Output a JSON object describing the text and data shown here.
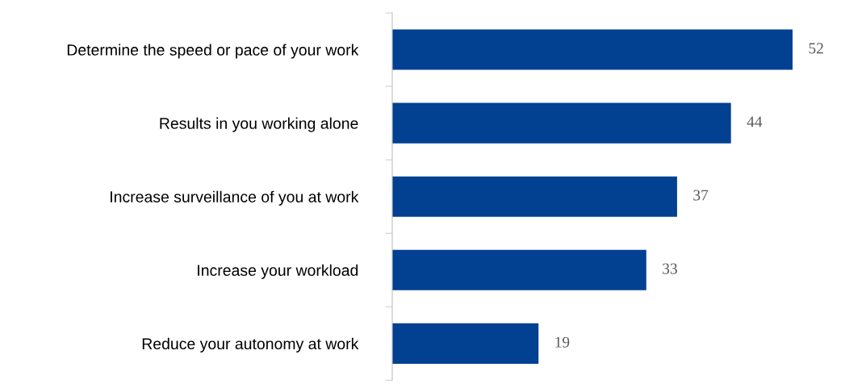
{
  "chart_data": {
    "type": "bar",
    "orientation": "horizontal",
    "categories": [
      "Determine the speed or pace of your work",
      "Results in you working alone",
      "Increase surveillance of you at work",
      "Increase your workload",
      "Reduce your autonomy at work"
    ],
    "values": [
      52,
      44,
      37,
      33,
      19
    ],
    "color": "#024092",
    "data_labels": true,
    "tick_labels": "y",
    "grid": false,
    "legend": false
  }
}
